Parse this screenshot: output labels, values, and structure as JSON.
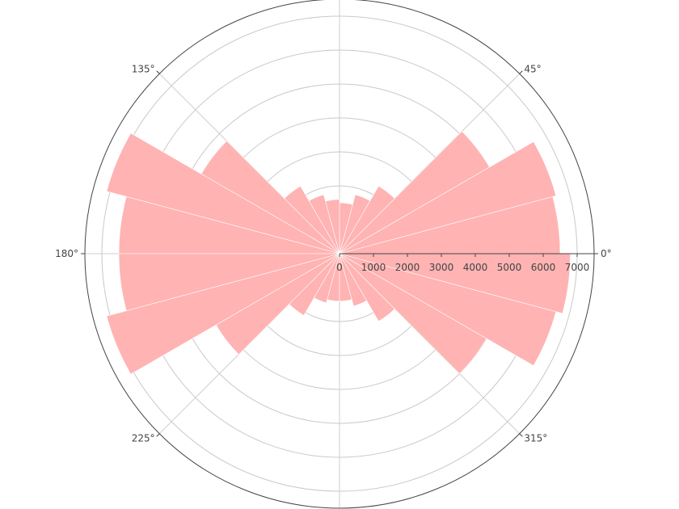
{
  "chart_data": {
    "type": "barpolar",
    "title": "",
    "angular_axis": {
      "direction": "counterclockwise",
      "rotation_deg": 0,
      "labeled_angles": [
        0,
        45,
        135,
        180,
        225,
        315
      ],
      "labels": [
        "0°",
        "45°",
        "135°",
        "180°",
        "225°",
        "315°"
      ]
    },
    "radial_axis": {
      "range": [
        0,
        7500
      ],
      "tickvals": [
        0,
        1000,
        2000,
        3000,
        4000,
        5000,
        6000,
        7000
      ],
      "ticklabels": [
        "0",
        "1000",
        "2000",
        "3000",
        "4000",
        "5000",
        "6000",
        "7000"
      ],
      "grid": true
    },
    "bin_width_deg": 15,
    "series": [
      {
        "color": "#ffb3b3",
        "theta": [
          7.5,
          22.5,
          37.5,
          52.5,
          67.5,
          82.5,
          97.5,
          112.5,
          127.5,
          142.5,
          157.5,
          172.5,
          187.5,
          202.5,
          217.5,
          232.5,
          247.5,
          262.5,
          277.5,
          292.5,
          307.5,
          322.5,
          337.5,
          352.5
        ],
        "r": [
          6500,
          6600,
          5100,
          2300,
          1800,
          1500,
          1600,
          1800,
          2300,
          4700,
          7100,
          6500,
          6500,
          7100,
          4200,
          2100,
          1500,
          1400,
          1400,
          1600,
          2300,
          5000,
          6600,
          6800
        ]
      }
    ]
  }
}
